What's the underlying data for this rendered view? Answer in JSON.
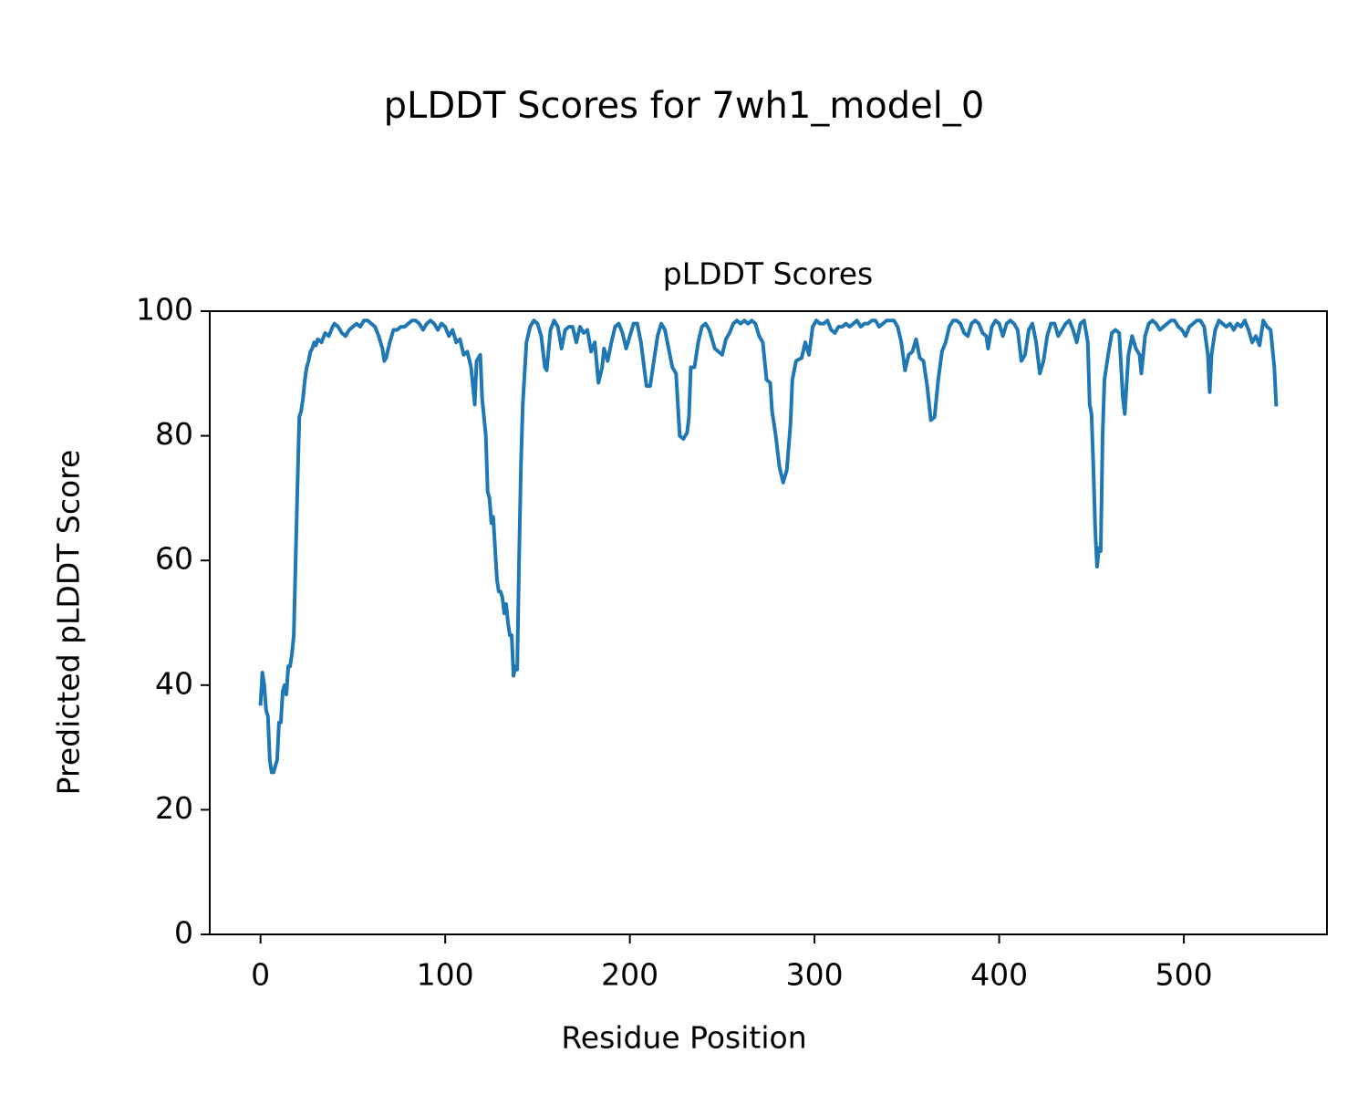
{
  "chart_data": {
    "type": "line",
    "suptitle": "pLDDT Scores for 7wh1_model_0",
    "title": "pLDDT Scores",
    "xlabel": "Residue Position",
    "ylabel": "Predicted pLDDT Score",
    "color": "#1f77b4",
    "xlim": [
      -27.5,
      577.5
    ],
    "xticks": [
      0,
      100,
      200,
      300,
      400,
      500
    ],
    "ylim": [
      0,
      100
    ],
    "yticks": [
      0,
      20,
      40,
      60,
      80,
      100
    ],
    "x": [
      0,
      1,
      2,
      3,
      4,
      5,
      6,
      7,
      8,
      9,
      10,
      11,
      12,
      13,
      14,
      15,
      16,
      17,
      18,
      19,
      20,
      21,
      22,
      23,
      24,
      25,
      26,
      27,
      28,
      29,
      30,
      31,
      33,
      35,
      37,
      39,
      40,
      42,
      44,
      46,
      48,
      50,
      52,
      54,
      56,
      58,
      60,
      62,
      64,
      66,
      67,
      68,
      70,
      72,
      74,
      76,
      78,
      80,
      82,
      84,
      86,
      88,
      90,
      92,
      94,
      96,
      98,
      100,
      102,
      104,
      106,
      108,
      110,
      112,
      114,
      116,
      117,
      119,
      120,
      122,
      123,
      124,
      125,
      126,
      128,
      129,
      130,
      131,
      132,
      133,
      134,
      135,
      136,
      137,
      138,
      139,
      140,
      141,
      142,
      144,
      146,
      148,
      150,
      152,
      154,
      155,
      157,
      159,
      161,
      163,
      165,
      167,
      169,
      171,
      173,
      175,
      177,
      179,
      181,
      183,
      185,
      186,
      188,
      190,
      192,
      194,
      196,
      198,
      200,
      202,
      204,
      206,
      209,
      211,
      213,
      215,
      217,
      219,
      221,
      223,
      225,
      227,
      229,
      231,
      232,
      233,
      235,
      237,
      239,
      241,
      243,
      246,
      248,
      250,
      252,
      254,
      256,
      258,
      260,
      262,
      264,
      266,
      268,
      270,
      272,
      274,
      276,
      277,
      279,
      281,
      283,
      285,
      287,
      288,
      290,
      293,
      295,
      297,
      299,
      301,
      303,
      305,
      307,
      309,
      311,
      313,
      315,
      317,
      319,
      321,
      323,
      325,
      327,
      329,
      331,
      333,
      335,
      337,
      339,
      341,
      343,
      345,
      347,
      349,
      351,
      353,
      355,
      357,
      359,
      361,
      363,
      365,
      367,
      369,
      371,
      373,
      375,
      377,
      379,
      381,
      383,
      385,
      387,
      389,
      391,
      393,
      394,
      396,
      398,
      400,
      402,
      404,
      406,
      408,
      410,
      412,
      414,
      416,
      418,
      420,
      422,
      424,
      426,
      428,
      430,
      432,
      434,
      436,
      438,
      440,
      442,
      444,
      446,
      448,
      449,
      450,
      451,
      452,
      453,
      454,
      455,
      456,
      457,
      459,
      461,
      463,
      465,
      467,
      468,
      470,
      472,
      474,
      476,
      477,
      479,
      481,
      483,
      485,
      487,
      489,
      491,
      493,
      495,
      497,
      499,
      501,
      503,
      505,
      507,
      509,
      511,
      513,
      514,
      515,
      517,
      519,
      521,
      523,
      525,
      527,
      529,
      531,
      533,
      535,
      537,
      539,
      541,
      543,
      545,
      547,
      549,
      550
    ],
    "values": [
      37,
      42,
      40,
      36,
      35,
      28,
      26,
      26,
      27,
      28,
      34,
      34,
      39,
      40,
      38.5,
      43,
      43,
      45,
      48,
      60,
      72,
      83,
      84,
      86,
      89,
      91,
      92,
      93.5,
      94,
      95,
      94.5,
      95.5,
      95,
      96.5,
      96,
      97.5,
      98,
      97.5,
      96.5,
      96,
      97,
      97.5,
      98,
      97.5,
      98.5,
      98.5,
      98,
      97.5,
      96,
      94,
      92,
      92.5,
      95,
      97,
      97,
      97.5,
      97.5,
      98,
      98.5,
      98.5,
      98,
      97,
      98,
      98.5,
      98,
      97,
      98,
      97.5,
      96,
      97,
      95,
      95.5,
      93,
      93.5,
      91,
      85,
      92,
      93,
      86,
      80,
      71,
      70,
      66,
      67,
      57,
      55,
      55,
      54,
      51.5,
      53,
      50,
      48,
      48,
      41.5,
      43,
      42.5,
      60,
      75,
      85,
      95,
      97.5,
      98.5,
      98,
      96,
      91,
      90.5,
      97,
      98.5,
      97.5,
      94,
      97,
      97.5,
      97.5,
      95,
      97.5,
      96.5,
      97,
      93.5,
      95,
      88.5,
      91,
      94,
      92,
      95,
      97.5,
      98,
      96.5,
      94,
      96,
      98,
      98,
      95,
      88,
      88,
      92,
      96,
      98,
      97,
      94,
      91,
      90,
      80,
      79.5,
      80.5,
      83,
      91,
      91,
      95,
      97.5,
      98,
      97,
      94,
      93.5,
      93,
      95.5,
      96.5,
      98,
      98.5,
      98,
      98.5,
      98,
      98.5,
      98,
      96,
      95,
      89,
      88.5,
      84,
      80,
      75,
      72.5,
      74.5,
      82,
      89,
      92,
      92.5,
      95,
      93,
      97.5,
      98.5,
      98,
      98,
      98.5,
      97,
      96.5,
      97.5,
      97.5,
      98,
      97.5,
      98,
      98.5,
      97.5,
      98,
      98,
      98.5,
      98.5,
      97.5,
      98,
      98.5,
      98.5,
      98.5,
      97.5,
      95,
      90.5,
      93,
      93.5,
      95.5,
      92.5,
      92,
      88,
      82.5,
      83,
      89,
      93.5,
      95,
      97.5,
      98.5,
      98.5,
      98,
      96.5,
      96,
      98,
      98.5,
      98,
      96.5,
      96,
      94,
      97.5,
      98.5,
      98,
      96,
      98,
      98.5,
      98,
      97,
      92,
      93,
      97,
      98,
      95,
      90,
      92,
      96,
      98,
      98,
      96,
      97,
      98,
      98.5,
      97,
      95,
      98,
      98.5,
      95,
      85,
      83.5,
      75,
      65,
      59,
      62,
      61.5,
      80,
      89,
      93,
      96.5,
      97,
      96.5,
      86,
      83.5,
      93,
      96,
      94,
      93,
      90,
      96,
      98,
      98.5,
      98,
      97,
      97.5,
      98,
      98.5,
      98.5,
      97.5,
      97,
      96,
      97.5,
      98,
      98.5,
      98.5,
      97.5,
      93,
      87,
      93,
      97,
      98.5,
      98,
      97.5,
      98,
      97,
      98,
      97.5,
      98.5,
      97,
      95,
      96,
      94.5,
      98.5,
      97.5,
      97,
      91,
      85
    ]
  }
}
